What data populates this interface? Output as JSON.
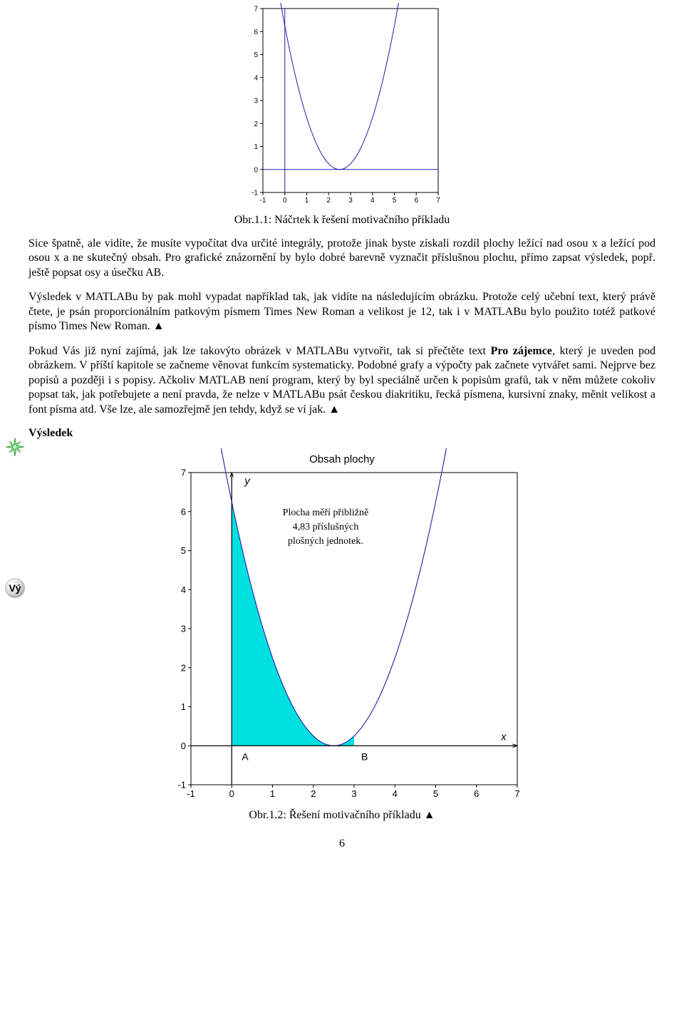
{
  "chart1": {
    "type": "line",
    "background_color": "#ffffff",
    "axis_color": "#000000",
    "line_color": "#1f1fa8",
    "line_width": 1.0,
    "tick_fontsize": 10,
    "tick_color": "#000000",
    "xlim": [
      -1,
      7
    ],
    "ylim": [
      -1,
      7
    ],
    "xticks": [
      -1,
      0,
      1,
      2,
      3,
      4,
      5,
      6,
      7
    ],
    "yticks": [
      -1,
      0,
      1,
      2,
      3,
      4,
      5,
      6,
      7
    ],
    "series": {
      "x": [
        0,
        0.5,
        1,
        1.5,
        2,
        2.5,
        3,
        3.5,
        4,
        4.5,
        5,
        5.5
      ],
      "y": [
        6.25,
        4.0,
        2.25,
        1.0,
        0.25,
        0.0,
        0.25,
        1.0,
        2.25,
        4.0,
        6.25,
        9.0
      ]
    },
    "zero_line_color": "#1f1fa8",
    "frame_color": "#000000"
  },
  "caption1": "Obr.1.1: Náčrtek k řešení motivačního příkladu",
  "para1": "Sice špatně, ale vidíte, že musíte vypočítat dva určité integrály, protože jinak byste získali rozdíl plochy ležící nad osou x a ležící pod osou x a ne skutečný obsah. Pro grafické znázornění by bylo dobré barevně vyznačit příslušnou plochu, přímo zapsat výsledek, popř. ještě popsat osy a úsečku AB.",
  "para2": "Výsledek v MATLABu by pak mohl vypadat například tak, jak vidíte na následujícím obrázku. Protože celý učební text, který právě čtete, je psán proporcionálním patkovým písmem Times New Roman a velikost je 12, tak i v MATLABu bylo použito totéž patkové písmo Times New Roman. ▲",
  "para3_a": "Pokud Vás již nyní zajímá, jak lze takovýto obrázek v MATLABu vytvořit, tak si přečtěte text ",
  "para3_b": "Pro zájemce",
  "para3_c": ", který je uveden pod obrázkem. V příští kapitole se začneme věnovat funkcím systematicky. Podobné grafy a výpočty pak začnete vytvářet sami. Nejprve bez popisů a později i s popisy. Ačkoliv MATLAB není program, který by byl speciálně určen k popisům grafů, tak v něm můžete cokoliv popsat tak, jak potřebujete a není pravda, že nelze v MATLABu psát českou diakritiku, řecká písmena, kursivní znaky, měnit velikost a font písma atd. Vše lze, ale samozřejmě jen tehdy, když se ví jak. ▲",
  "section_title": "Výsledek",
  "chart2": {
    "type": "area",
    "background_color": "#ffffff",
    "axis_color": "#000000",
    "line_color": "#1f1fa8",
    "fill_color": "#00e0e0",
    "line_width": 1.1,
    "tick_fontsize": 13,
    "tick_color": "#000000",
    "title": "Obsah plochy",
    "title_fontsize": 15,
    "annot_line1": "Plocha měří přibližně",
    "annot_line2": "4,83 příslušných",
    "annot_line3": "plošných jednotek.",
    "annot_fontsize": 14,
    "y_axis_label": "y",
    "y_axis_label_style": "italic",
    "x_axis_label": "x",
    "x_axis_label_style": "italic",
    "label_A": "A",
    "label_B": "B",
    "xlim": [
      -1,
      7
    ],
    "ylim": [
      -1,
      7
    ],
    "xticks": [
      -1,
      0,
      1,
      2,
      3,
      4,
      5,
      6,
      7
    ],
    "yticks": [
      -1,
      0,
      1,
      2,
      3,
      4,
      5,
      6,
      7
    ],
    "region_bounds_x": [
      0,
      3
    ],
    "series": {
      "x": [
        0,
        0.5,
        1,
        1.5,
        2,
        2.5,
        3,
        3.5,
        4,
        4.5,
        5,
        5.5
      ],
      "y": [
        6.25,
        4.0,
        2.25,
        1.0,
        0.25,
        0.0,
        0.25,
        1.0,
        2.25,
        4.0,
        6.25,
        9.0
      ]
    },
    "frame_color": "#000000"
  },
  "caption2": "Obr.1.2: Řešení motivačního příkladu ▲",
  "pagenum": "6"
}
